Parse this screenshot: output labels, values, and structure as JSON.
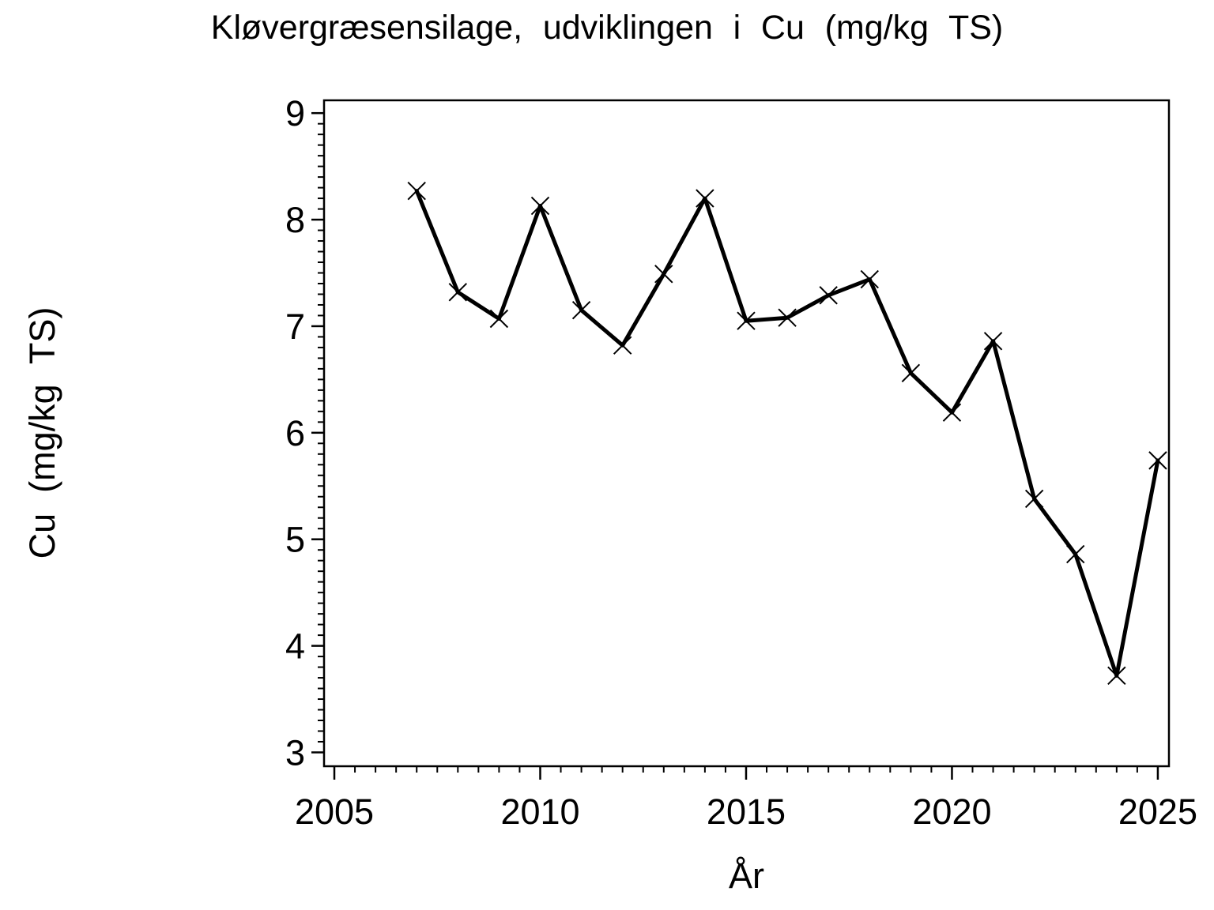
{
  "page": {
    "background": "#ffffff",
    "foreground": "#000000"
  },
  "chart_data": {
    "type": "line",
    "title": "Kløvergræsensilage, udviklingen i Cu (mg/kg TS)",
    "xlabel": "År",
    "ylabel": "Cu (mg/kg TS)",
    "grid": false,
    "frame": "box",
    "legend": "none",
    "marker": "x",
    "line_color": "#000000",
    "marker_color": "#000000",
    "xlim": [
      2004.75,
      2025.27
    ],
    "ylim": [
      2.87,
      9.12
    ],
    "x_major_ticks": [
      2005,
      2010,
      2015,
      2020,
      2025
    ],
    "x_minor_tick_step": 0.5,
    "y_major_ticks": [
      3,
      4,
      5,
      6,
      7,
      8,
      9
    ],
    "y_minor_tick_step": 0.1,
    "series": [
      {
        "name": "Cu (mg/kg TS)",
        "x": [
          2007,
          2008,
          2009,
          2010,
          2011,
          2012,
          2013,
          2014,
          2015,
          2016,
          2017,
          2018,
          2019,
          2020,
          2021,
          2022,
          2023,
          2024,
          2025
        ],
        "values": [
          8.27,
          7.32,
          7.07,
          8.13,
          7.15,
          6.82,
          7.49,
          8.2,
          7.05,
          7.08,
          7.29,
          7.44,
          6.56,
          6.19,
          6.86,
          5.38,
          4.86,
          3.72,
          5.74
        ]
      }
    ]
  }
}
